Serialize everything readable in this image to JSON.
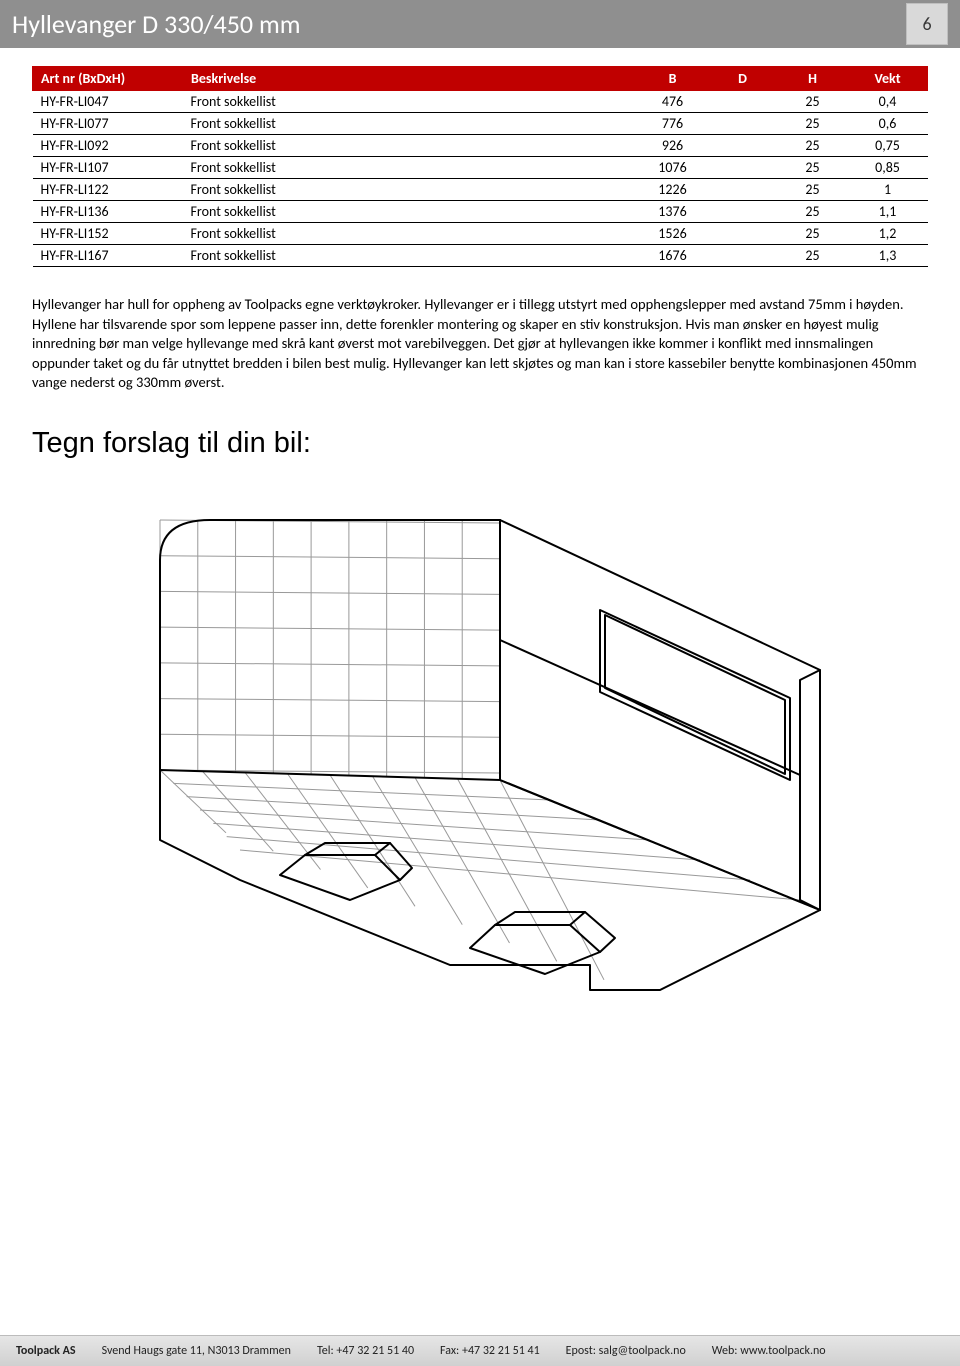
{
  "header": {
    "title": "Hyllevanger D 330/450 mm",
    "page_number": "6"
  },
  "table": {
    "columns": [
      "Art nr (BxDxH)",
      "Beskrivelse",
      "B",
      "D",
      "H",
      "Vekt"
    ],
    "column_classes": [
      "col-art",
      "col-desc",
      "col-b num",
      "col-d num",
      "col-h num",
      "col-v num"
    ],
    "rows": [
      [
        "HY-FR-LI047",
        "Front sokkellist",
        "476",
        "",
        "25",
        "0,4"
      ],
      [
        "HY-FR-LI077",
        "Front sokkellist",
        "776",
        "",
        "25",
        "0,6"
      ],
      [
        "HY-FR-LI092",
        "Front sokkellist",
        "926",
        "",
        "25",
        "0,75"
      ],
      [
        "HY-FR-LI107",
        "Front sokkellist",
        "1076",
        "",
        "25",
        "0,85"
      ],
      [
        "HY-FR-LI122",
        "Front sokkellist",
        "1226",
        "",
        "25",
        "1"
      ],
      [
        "HY-FR-LI136",
        "Front sokkellist",
        "1376",
        "",
        "25",
        "1,1"
      ],
      [
        "HY-FR-LI152",
        "Front sokkellist",
        "1526",
        "",
        "25",
        "1,2"
      ],
      [
        "HY-FR-LI167",
        "Front sokkellist",
        "1676",
        "",
        "25",
        "1,3"
      ]
    ]
  },
  "body_text": "Hyllevanger har hull for oppheng av Toolpacks egne verktøykroker. Hyllevanger er i tillegg utstyrt med opphengslepper med avstand 75mm i høyden. Hyllene har tilsvarende spor som leppene passer inn, dette forenkler montering og skaper en stiv konstruksjon. Hvis man ønsker en høyest mulig innredning bør man velge hyllevange med skrå kant øverst mot varebilveggen. Det gjør at hyllevangen ikke kommer i konflikt med innsmalingen oppunder taket og du får utnyttet bredden i bilen best mulig. Hyllevanger kan lett skjøtes og man kan i store kassebiler benytte kombinasjonen 450mm vange nederst og 330mm øverst.",
  "subheading": "Tegn forslag til din bil:",
  "footer": {
    "company": "Toolpack AS",
    "address": "Svend Haugs gate 11, N3013 Drammen",
    "tel_label": "Tel:",
    "tel": "+47 32 21 51 40",
    "fax_label": "Fax:",
    "fax": "+47 32 21 51 41",
    "email_label": "Epost:",
    "email": "salg@toolpack.no",
    "web_label": "Web:",
    "web": "www.toolpack.no"
  },
  "drawing": {
    "line_color": "#000000",
    "grid_color": "#999999",
    "line_width": 2,
    "grid_width": 1
  }
}
